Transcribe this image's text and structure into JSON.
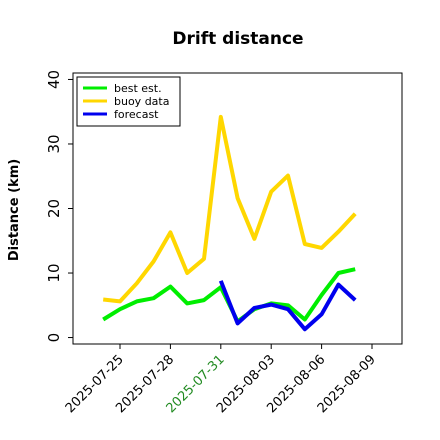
{
  "chart_data": {
    "type": "line",
    "title": "Drift distance",
    "ylabel": "Distance (km)",
    "xlabel": "",
    "ylim": [
      -1,
      41
    ],
    "yticks": [
      0,
      10,
      20,
      30,
      40
    ],
    "x": [
      "2025-07-24 12:00",
      "2025-07-25 00:00",
      "2025-07-25 12:00",
      "2025-07-26 00:00",
      "2025-07-26 12:00",
      "2025-07-27 00:00",
      "2025-07-27 12:00",
      "2025-07-28 00:00",
      "2025-07-28 12:00",
      "2025-07-29 00:00",
      "2025-07-29 12:00",
      "2025-07-30 00:00",
      "2025-07-30 12:00",
      "2025-07-31 00:00",
      "2025-07-31 12:00",
      "2025-08-01 00:00",
      "2025-08-01 12:00",
      "2025-08-02 00:00",
      "2025-08-02 12:00",
      "2025-08-03 00:00",
      "2025-08-03 12:00",
      "2025-08-04 00:00",
      "2025-08-04 12:00",
      "2025-08-05 00:00",
      "2025-08-05 12:00",
      "2025-08-06 00:00",
      "2025-08-06 12:00",
      "2025-08-07 00:00",
      "2025-08-07 12:00",
      "2025-08-08 00:00",
      "2025-08-08 12:00",
      "2025-08-09 00:00",
      "2025-08-09 12:00",
      "2025-08-10 00:00"
    ],
    "xticks": [
      {
        "label": "2025-07-25",
        "color": "#000000"
      },
      {
        "label": "2025-07-28",
        "color": "#000000"
      },
      {
        "label": "2025-07-31",
        "color": "#228B22"
      },
      {
        "label": "2025-08-03",
        "color": "#000000"
      },
      {
        "label": "2025-08-06",
        "color": "#000000"
      },
      {
        "label": "2025-08-09",
        "color": "#000000"
      }
    ],
    "xtick_dates": [
      "2025-07-25",
      "2025-07-28",
      "2025-07-31",
      "2025-08-03",
      "2025-08-06",
      "2025-08-09"
    ],
    "series": [
      {
        "name": "best est.",
        "color": "#00ee00",
        "points": [
          [
            "2025-07-24",
            2.8
          ],
          [
            "2025-07-25",
            4.4
          ],
          [
            "2025-07-26",
            5.6
          ],
          [
            "2025-07-27",
            6.1
          ],
          [
            "2025-07-28",
            7.9
          ],
          [
            "2025-07-29",
            5.3
          ],
          [
            "2025-07-30",
            5.8
          ],
          [
            "2025-07-31",
            7.8
          ],
          [
            "2025-08-01",
            2.5
          ],
          [
            "2025-08-02",
            4.4
          ],
          [
            "2025-08-03",
            5.3
          ],
          [
            "2025-08-04",
            5.0
          ],
          [
            "2025-08-05",
            2.8
          ],
          [
            "2025-08-06",
            6.6
          ],
          [
            "2025-08-07",
            10.0
          ],
          [
            "2025-08-08",
            10.6
          ]
        ]
      },
      {
        "name": "buoy data",
        "color": "#ffd700",
        "points": [
          [
            "2025-07-24",
            5.9
          ],
          [
            "2025-07-25",
            5.6
          ],
          [
            "2025-07-26",
            8.4
          ],
          [
            "2025-07-27",
            11.8
          ],
          [
            "2025-07-28",
            16.3
          ],
          [
            "2025-07-29",
            10.0
          ],
          [
            "2025-07-30",
            12.2
          ],
          [
            "2025-07-31",
            34.2
          ],
          [
            "2025-08-01",
            21.6
          ],
          [
            "2025-08-02",
            15.3
          ],
          [
            "2025-08-03",
            22.6
          ],
          [
            "2025-08-04",
            25.1
          ],
          [
            "2025-08-05",
            14.5
          ],
          [
            "2025-08-06",
            13.9
          ],
          [
            "2025-08-07",
            16.4
          ],
          [
            "2025-08-08",
            19.2
          ]
        ]
      },
      {
        "name": "forecast",
        "color": "#0000ee",
        "points": [
          [
            "2025-07-31",
            8.8
          ],
          [
            "2025-08-01",
            2.2
          ],
          [
            "2025-08-02",
            4.6
          ],
          [
            "2025-08-03",
            5.1
          ],
          [
            "2025-08-04",
            4.4
          ],
          [
            "2025-08-05",
            1.3
          ],
          [
            "2025-08-06",
            3.6
          ],
          [
            "2025-08-07",
            8.2
          ],
          [
            "2025-08-08",
            5.8
          ]
        ]
      }
    ],
    "legend": "top-left",
    "grid": false
  }
}
